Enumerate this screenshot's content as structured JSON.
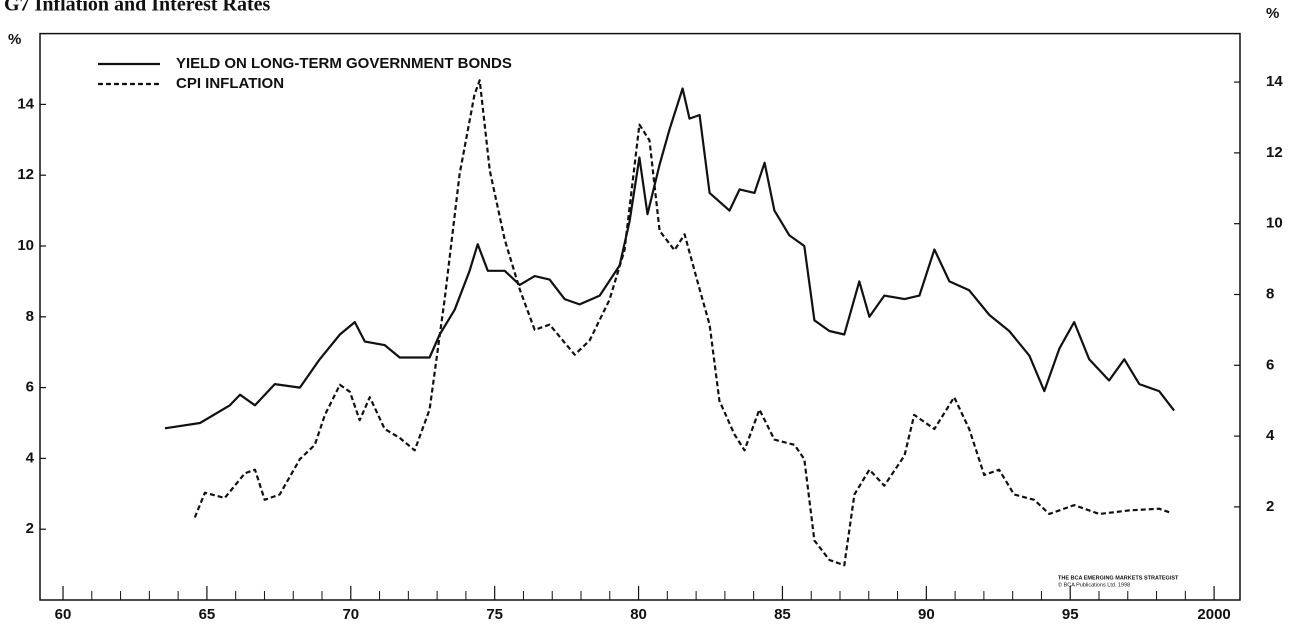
{
  "chart_data": {
    "type": "line",
    "title": "G7 Inflation and Interest Rates",
    "y_label": "%",
    "y2_label": "%",
    "note": "THE BCA EMERGING MARKETS STRATEGIST",
    "note2": "© BCA Publications Ltd. 1998",
    "xlim": [
      1959.2,
      2000.9
    ],
    "xticks": [
      {
        "value": 1960,
        "label": "60"
      },
      {
        "value": 1965,
        "label": "65"
      },
      {
        "value": 1970,
        "label": "70"
      },
      {
        "value": 1975,
        "label": "75"
      },
      {
        "value": 1980,
        "label": "80"
      },
      {
        "value": 1985,
        "label": "85"
      },
      {
        "value": 1990,
        "label": "90"
      },
      {
        "value": 1995,
        "label": "95"
      },
      2000
    ],
    "xminorticks": [
      1961,
      1962,
      1963,
      1964,
      1966,
      1967,
      1968,
      1969,
      1971,
      1972,
      1973,
      1974,
      1976,
      1977,
      1978,
      1979,
      1981,
      1982,
      1983,
      1984,
      1986,
      1987,
      1988,
      1989,
      1991,
      1992,
      1993,
      1994,
      1996,
      1997,
      1998,
      1999
    ],
    "ylim": [
      0,
      16
    ],
    "yticks": [
      2,
      4,
      6,
      8,
      10,
      12,
      14
    ],
    "y2lim": [
      -0.63,
      15.37
    ],
    "y2ticks": [
      2,
      4,
      6,
      8,
      10,
      12,
      14
    ],
    "series": [
      {
        "name": "YIELD ON LONG-TERM GOVERNMENT BONDS",
        "color": "#111111",
        "dash": "solid",
        "axis": "y",
        "x": [
          1963.54,
          1964.76,
          1965.8,
          1966.15,
          1966.67,
          1967.36,
          1968.23,
          1968.92,
          1969.62,
          1970.14,
          1970.49,
          1971.18,
          1971.7,
          1972.74,
          1973.09,
          1973.61,
          1974.13,
          1974.41,
          1974.76,
          1975.35,
          1975.87,
          1976.39,
          1976.91,
          1977.43,
          1977.95,
          1978.65,
          1979.34,
          1979.69,
          1980.03,
          1980.31,
          1980.73,
          1981.08,
          1981.53,
          1981.77,
          1982.12,
          1982.47,
          1983.16,
          1983.51,
          1984.03,
          1984.38,
          1984.72,
          1985.24,
          1985.76,
          1986.11,
          1986.63,
          1987.15,
          1987.67,
          1988.02,
          1988.54,
          1989.24,
          1989.76,
          1990.28,
          1990.8,
          1991.49,
          1992.19,
          1992.88,
          1993.58,
          1994.1,
          1994.62,
          1995.14,
          1995.66,
          1996.35,
          1996.88,
          1997.4,
          1998.09,
          1998.61
        ],
        "values": [
          4.85,
          5.0,
          5.5,
          5.8,
          5.5,
          6.1,
          6.0,
          6.8,
          7.5,
          7.85,
          7.3,
          7.2,
          6.85,
          6.85,
          7.5,
          8.2,
          9.3,
          10.05,
          9.3,
          9.3,
          8.9,
          9.15,
          9.05,
          8.5,
          8.35,
          8.6,
          9.45,
          10.7,
          12.5,
          10.9,
          12.3,
          13.3,
          14.45,
          13.6,
          13.7,
          11.5,
          11.0,
          11.6,
          11.5,
          12.35,
          11.0,
          10.3,
          10.0,
          7.9,
          7.6,
          7.5,
          9.0,
          8.0,
          8.6,
          8.5,
          8.6,
          9.9,
          9.0,
          8.75,
          8.05,
          7.6,
          6.9,
          5.9,
          7.1,
          7.85,
          6.8,
          6.2,
          6.8,
          6.1,
          5.9,
          5.35
        ]
      },
      {
        "name": "CPI INFLATION",
        "color": "#111111",
        "dash": "dashed",
        "axis": "y2",
        "x": [
          1964.58,
          1964.93,
          1965.62,
          1966.32,
          1966.67,
          1967.01,
          1967.53,
          1968.23,
          1968.75,
          1969.1,
          1969.62,
          1969.97,
          1970.31,
          1970.66,
          1971.18,
          1971.7,
          1972.22,
          1972.74,
          1973.26,
          1973.78,
          1974.3,
          1974.48,
          1974.83,
          1975.35,
          1975.87,
          1976.39,
          1976.91,
          1977.78,
          1978.3,
          1978.99,
          1979.51,
          1980.03,
          1980.38,
          1980.73,
          1981.25,
          1981.6,
          1982.12,
          1982.47,
          1982.81,
          1983.33,
          1983.68,
          1984.2,
          1984.72,
          1985.42,
          1985.76,
          1986.11,
          1986.63,
          1987.15,
          1987.5,
          1988.02,
          1988.54,
          1989.24,
          1989.58,
          1990.28,
          1990.97,
          1991.49,
          1992.01,
          1992.53,
          1993.05,
          1993.75,
          1994.27,
          1995.14,
          1996.01,
          1997.05,
          1998.09,
          1998.44
        ],
        "values": [
          1.7,
          2.4,
          2.25,
          2.95,
          3.05,
          2.2,
          2.35,
          3.35,
          3.75,
          4.6,
          5.45,
          5.25,
          4.45,
          5.1,
          4.2,
          3.95,
          3.6,
          4.75,
          7.85,
          11.4,
          13.65,
          14.05,
          11.5,
          9.55,
          8.15,
          7.0,
          7.15,
          6.3,
          6.7,
          7.85,
          9.25,
          12.8,
          12.35,
          9.8,
          9.25,
          9.7,
          8.15,
          7.15,
          5.0,
          4.05,
          3.6,
          4.75,
          3.9,
          3.75,
          3.35,
          1.05,
          0.5,
          0.35,
          2.35,
          3.05,
          2.6,
          3.45,
          4.6,
          4.2,
          5.1,
          4.2,
          2.9,
          3.05,
          2.35,
          2.2,
          1.8,
          2.05,
          1.8,
          1.9,
          1.95,
          1.85
        ]
      }
    ]
  }
}
